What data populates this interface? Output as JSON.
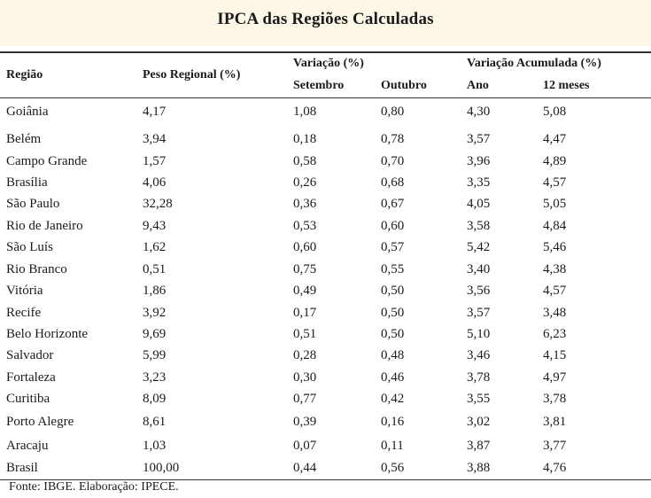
{
  "title": "IPCA das Regiões Calculadas",
  "headers": {
    "regiao": "Região",
    "peso": "Peso Regional (%)",
    "variacao": "Variação (%)",
    "setembro": "Setembro",
    "outubro": "Outubro",
    "acumulada": "Variação Acumulada (%)",
    "ano": "Ano",
    "meses12": "12 meses"
  },
  "rows": [
    {
      "regiao": "Goiânia",
      "peso": "4,17",
      "setembro": "1,08",
      "outubro": "0,80",
      "ano": "4,30",
      "meses12": "5,08"
    },
    {
      "regiao": "Belém",
      "peso": "3,94",
      "setembro": "0,18",
      "outubro": "0,78",
      "ano": "3,57",
      "meses12": "4,47"
    },
    {
      "regiao": "Campo Grande",
      "peso": "1,57",
      "setembro": "0,58",
      "outubro": "0,70",
      "ano": "3,96",
      "meses12": "4,89"
    },
    {
      "regiao": "Brasília",
      "peso": "4,06",
      "setembro": "0,26",
      "outubro": "0,68",
      "ano": "3,35",
      "meses12": "4,57"
    },
    {
      "regiao": "São Paulo",
      "peso": "32,28",
      "setembro": "0,36",
      "outubro": "0,67",
      "ano": "4,05",
      "meses12": "5,05"
    },
    {
      "regiao": "Rio de Janeiro",
      "peso": "9,43",
      "setembro": "0,53",
      "outubro": "0,60",
      "ano": "3,58",
      "meses12": "4,84"
    },
    {
      "regiao": "São Luís",
      "peso": "1,62",
      "setembro": "0,60",
      "outubro": "0,57",
      "ano": "5,42",
      "meses12": "5,46"
    },
    {
      "regiao": "Rio Branco",
      "peso": "0,51",
      "setembro": "0,75",
      "outubro": "0,55",
      "ano": "3,40",
      "meses12": "4,38"
    },
    {
      "regiao": "Vitória",
      "peso": "1,86",
      "setembro": "0,49",
      "outubro": "0,50",
      "ano": "3,56",
      "meses12": "4,57"
    },
    {
      "regiao": "Recife",
      "peso": "3,92",
      "setembro": "0,17",
      "outubro": "0,50",
      "ano": "3,57",
      "meses12": "3,48"
    },
    {
      "regiao": "Belo Horizonte",
      "peso": "9,69",
      "setembro": "0,51",
      "outubro": "0,50",
      "ano": "5,10",
      "meses12": "6,23"
    },
    {
      "regiao": "Salvador",
      "peso": "5,99",
      "setembro": "0,28",
      "outubro": "0,48",
      "ano": "3,46",
      "meses12": "4,15"
    },
    {
      "regiao": "Fortaleza",
      "peso": "3,23",
      "setembro": "0,30",
      "outubro": "0,46",
      "ano": "3,78",
      "meses12": "4,97"
    },
    {
      "regiao": "Curitiba",
      "peso": "8,09",
      "setembro": "0,77",
      "outubro": "0,42",
      "ano": "3,55",
      "meses12": "3,78"
    },
    {
      "regiao": "Porto Alegre",
      "peso": "8,61",
      "setembro": "0,39",
      "outubro": "0,16",
      "ano": "3,02",
      "meses12": "3,81"
    },
    {
      "regiao": "Aracaju",
      "peso": "1,03",
      "setembro": "0,07",
      "outubro": "0,11",
      "ano": "3,87",
      "meses12": "3,77"
    },
    {
      "regiao": "Brasil",
      "peso": "100,00",
      "setembro": "0,44",
      "outubro": "0,56",
      "ano": "3,88",
      "meses12": "4,76"
    }
  ],
  "footer": "Fonte: IBGE. Elaboração: IPECE."
}
